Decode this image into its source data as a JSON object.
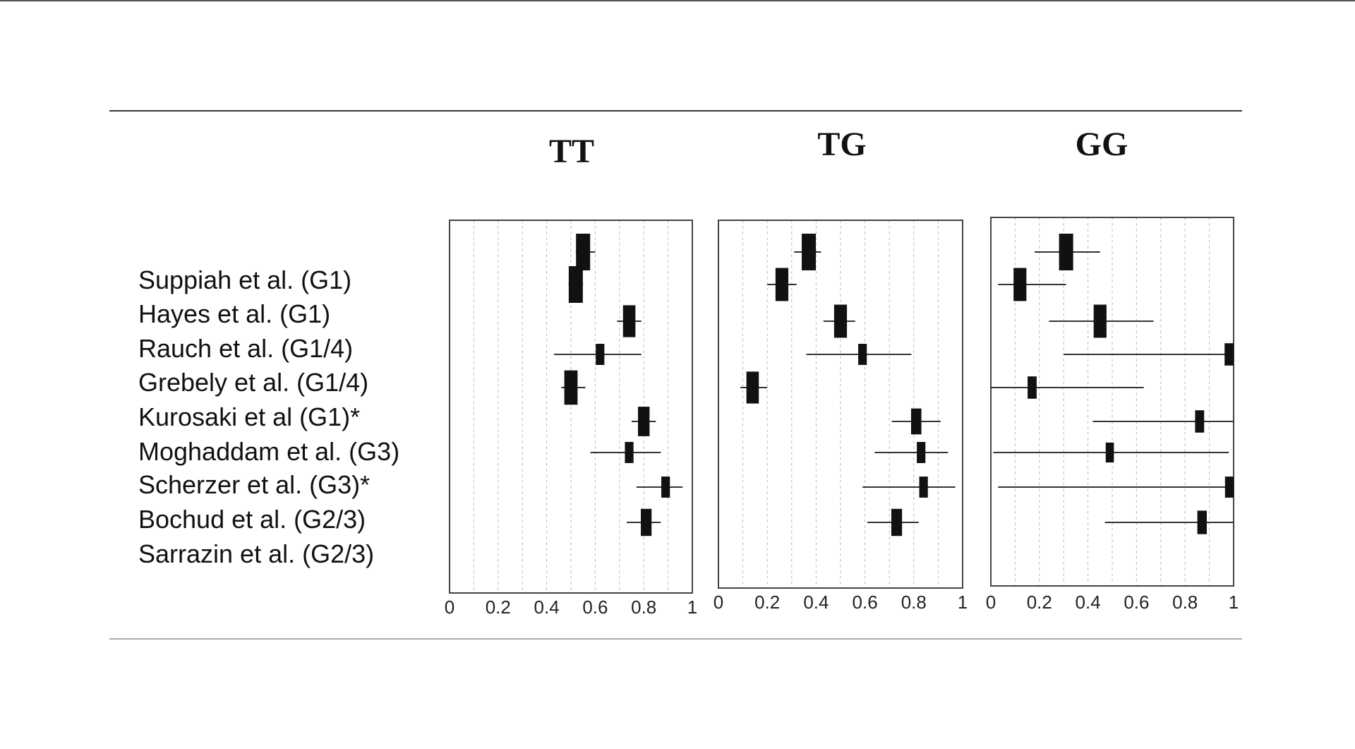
{
  "chart_data": {
    "type": "forest",
    "studies": [
      "Suppiah et al. (G1)",
      "Hayes et al. (G1)",
      "Rauch et al. (G1/4)",
      "Grebely et al. (G1/4)",
      "Kurosaki et al (G1)*",
      "Moghaddam et al. (G3)",
      "Scherzer et al. (G3)*",
      "Bochud et al. (G2/3)",
      "Sarrazin et al. (G2/3)"
    ],
    "xlim": [
      0,
      1
    ],
    "xticks": [
      "0",
      "0.2",
      "0.4",
      "0.6",
      "0.8",
      "1"
    ],
    "colors": {
      "marker": "#111111",
      "whisker": "#333333",
      "frame": "#444444",
      "grid": "#bbbbbb"
    },
    "panels": [
      {
        "title": "TT",
        "points": [
          {
            "est": 0.55,
            "lo": 0.52,
            "hi": 0.6,
            "weight": 1.0
          },
          {
            "est": 0.52,
            "lo": 0.49,
            "hi": 0.55,
            "weight": 1.0
          },
          {
            "est": 0.74,
            "lo": 0.69,
            "hi": 0.79,
            "weight": 0.8
          },
          {
            "est": 0.62,
            "lo": 0.43,
            "hi": 0.79,
            "weight": 0.35
          },
          {
            "est": 0.5,
            "lo": 0.46,
            "hi": 0.56,
            "weight": 0.9
          },
          {
            "est": 0.8,
            "lo": 0.75,
            "hi": 0.85,
            "weight": 0.7
          },
          {
            "est": 0.74,
            "lo": 0.58,
            "hi": 0.87,
            "weight": 0.35
          },
          {
            "est": 0.89,
            "lo": 0.77,
            "hi": 0.96,
            "weight": 0.35
          },
          {
            "est": 0.81,
            "lo": 0.73,
            "hi": 0.87,
            "weight": 0.6
          }
        ]
      },
      {
        "title": "TG",
        "points": [
          {
            "est": 0.37,
            "lo": 0.31,
            "hi": 0.42,
            "weight": 1.0
          },
          {
            "est": 0.26,
            "lo": 0.2,
            "hi": 0.32,
            "weight": 0.85
          },
          {
            "est": 0.5,
            "lo": 0.43,
            "hi": 0.56,
            "weight": 0.85
          },
          {
            "est": 0.59,
            "lo": 0.36,
            "hi": 0.79,
            "weight": 0.35
          },
          {
            "est": 0.14,
            "lo": 0.09,
            "hi": 0.2,
            "weight": 0.8
          },
          {
            "est": 0.81,
            "lo": 0.71,
            "hi": 0.91,
            "weight": 0.55
          },
          {
            "est": 0.83,
            "lo": 0.64,
            "hi": 0.94,
            "weight": 0.35
          },
          {
            "est": 0.84,
            "lo": 0.59,
            "hi": 0.97,
            "weight": 0.35
          },
          {
            "est": 0.73,
            "lo": 0.61,
            "hi": 0.82,
            "weight": 0.6
          }
        ]
      },
      {
        "title": "GG",
        "points": [
          {
            "est": 0.31,
            "lo": 0.18,
            "hi": 0.45,
            "weight": 1.0
          },
          {
            "est": 0.12,
            "lo": 0.03,
            "hi": 0.31,
            "weight": 0.85
          },
          {
            "est": 0.45,
            "lo": 0.24,
            "hi": 0.67,
            "weight": 0.85
          },
          {
            "est": 1.0,
            "lo": 0.3,
            "hi": 1.0,
            "weight": 0.4
          },
          {
            "est": 0.17,
            "lo": 0.0,
            "hi": 0.63,
            "weight": 0.4
          },
          {
            "est": 0.86,
            "lo": 0.42,
            "hi": 1.0,
            "weight": 0.4
          },
          {
            "est": 0.49,
            "lo": 0.01,
            "hi": 0.98,
            "weight": 0.3
          },
          {
            "est": 1.0,
            "lo": 0.03,
            "hi": 1.0,
            "weight": 0.35
          },
          {
            "est": 0.87,
            "lo": 0.47,
            "hi": 1.0,
            "weight": 0.45
          }
        ]
      }
    ]
  }
}
